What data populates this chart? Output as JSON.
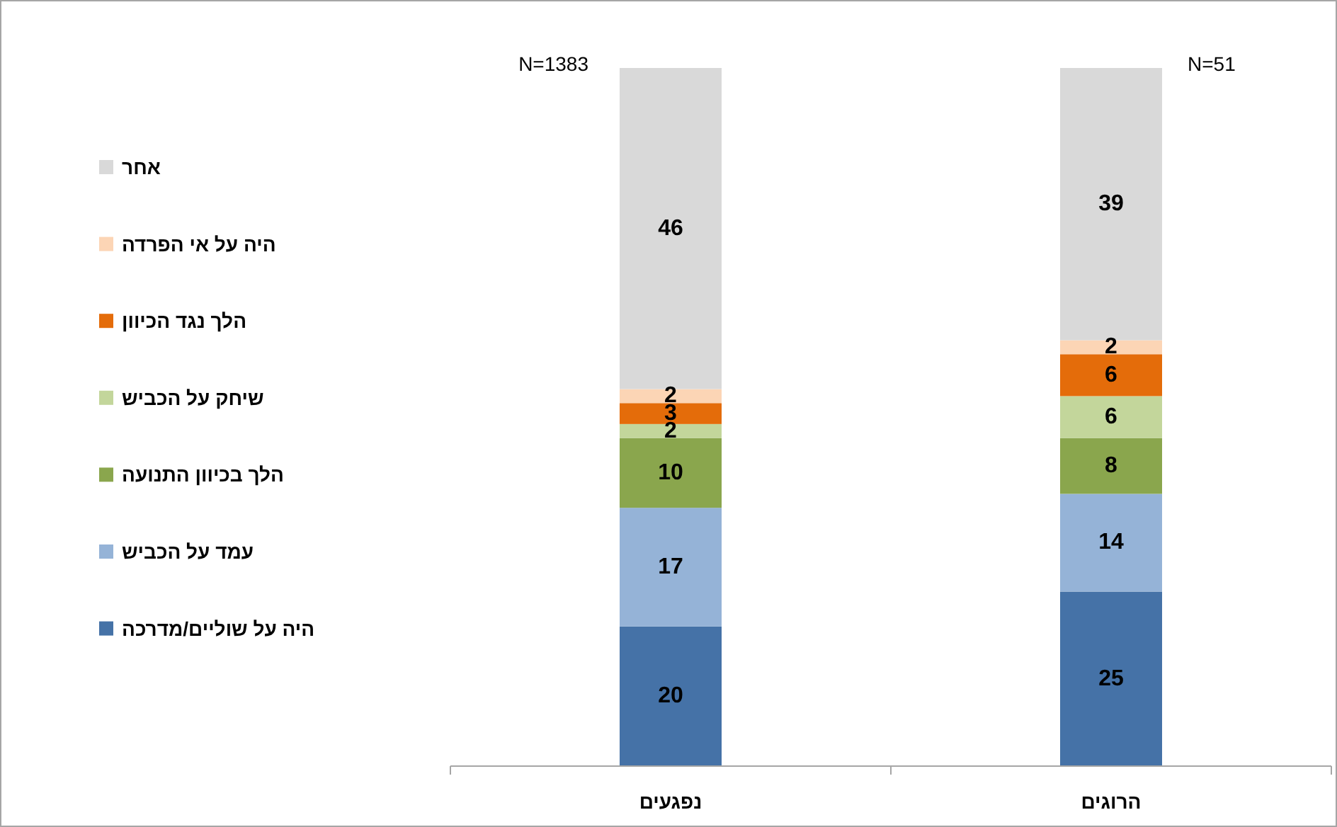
{
  "chart_data": {
    "type": "bar",
    "stacked": true,
    "categories": [
      "נפגעים",
      "הרוגים"
    ],
    "series": [
      {
        "name": "היה על שוליים/מדרכה",
        "color": "#4572a7",
        "values": [
          20,
          25
        ]
      },
      {
        "name": "עמד על הכביש",
        "color": "#95b3d7",
        "values": [
          17,
          14
        ]
      },
      {
        "name": "הלך בכיוון התנועה",
        "color": "#8aa64d",
        "values": [
          10,
          8
        ]
      },
      {
        "name": "שיחק על הכביש",
        "color": "#c3d69b",
        "values": [
          2,
          6
        ]
      },
      {
        "name": "הלך נגד הכיוון",
        "color": "#e46c0a",
        "values": [
          3,
          6
        ]
      },
      {
        "name": "היה על אי הפרדה",
        "color": "#fcd5b5",
        "values": [
          2,
          2
        ]
      },
      {
        "name": "אחר",
        "color": "#d9d9d9",
        "values": [
          46,
          39
        ]
      }
    ],
    "tick_labels": "x",
    "data_labels": true,
    "legend": "left",
    "annotations": [
      "N=1383",
      "N=51"
    ]
  }
}
